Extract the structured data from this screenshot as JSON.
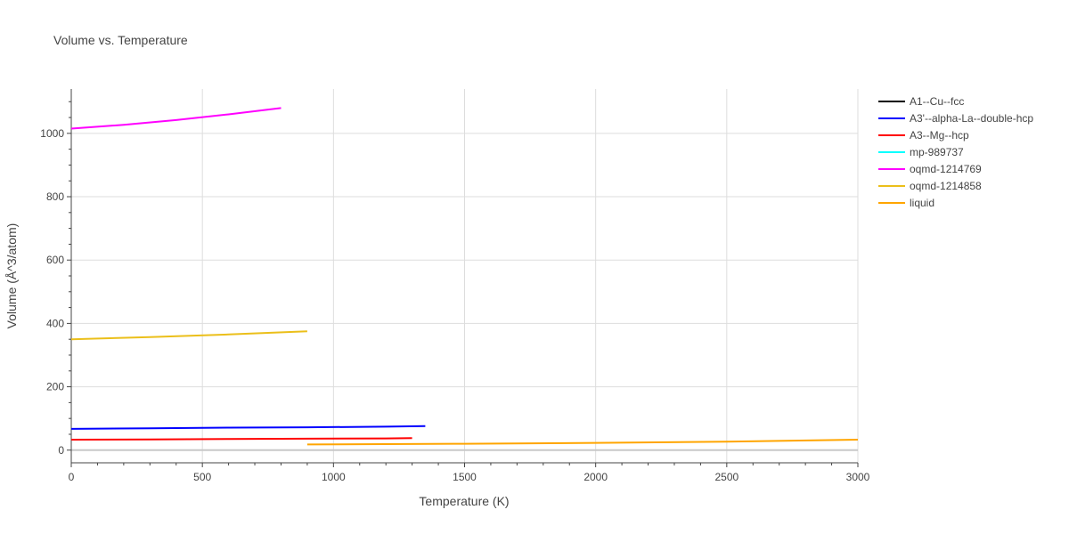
{
  "chart_data": {
    "type": "line",
    "title": "Volume vs. Temperature",
    "xlabel": "Temperature (K)",
    "ylabel": "Volume (Å^3/atom)",
    "xlim": [
      0,
      3000
    ],
    "ylim": [
      -40,
      1140
    ],
    "x_ticks": [
      0,
      500,
      1000,
      1500,
      2000,
      2500,
      3000
    ],
    "y_ticks": [
      0,
      200,
      400,
      600,
      800,
      1000
    ],
    "grid": true,
    "legend_position": "right",
    "series": [
      {
        "name": "A1--Cu--fcc",
        "color": "#000000",
        "x": [],
        "y": []
      },
      {
        "name": "A3'--alpha-La--double-hcp",
        "color": "#0000ff",
        "x": [
          0,
          300,
          600,
          900,
          1200,
          1350
        ],
        "y": [
          67,
          69,
          71,
          72,
          74,
          76
        ]
      },
      {
        "name": "A3--Mg--hcp",
        "color": "#ff0000",
        "x": [
          0,
          300,
          600,
          900,
          1200,
          1300
        ],
        "y": [
          33,
          34,
          35,
          36,
          37,
          38
        ]
      },
      {
        "name": "mp-989737",
        "color": "#00ffff",
        "x": [],
        "y": []
      },
      {
        "name": "oqmd-1214769",
        "color": "#ff00ff",
        "x": [
          0,
          200,
          400,
          600,
          800
        ],
        "y": [
          1015,
          1027,
          1042,
          1060,
          1080
        ]
      },
      {
        "name": "oqmd-1214858",
        "color": "#ebbf1a",
        "x": [
          0,
          300,
          600,
          900
        ],
        "y": [
          350,
          357,
          365,
          375
        ]
      },
      {
        "name": "liquid",
        "color": "#ffa500",
        "x": [
          900,
          1500,
          2000,
          2500,
          3000
        ],
        "y": [
          18,
          20,
          23,
          27,
          33
        ]
      }
    ]
  }
}
